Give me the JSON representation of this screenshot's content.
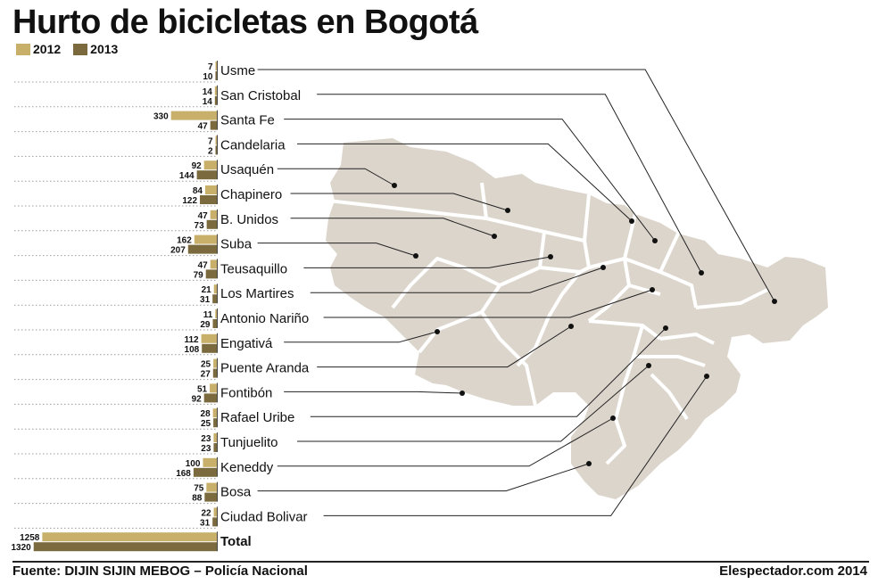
{
  "chart_data": {
    "type": "bar",
    "orientation": "horizontal",
    "title": "Hurto de bicicletas en Bogotá",
    "categories": [
      "Usme",
      "San Cristobal",
      "Santa Fe",
      "Candelaria",
      "Usaquén",
      "Chapinero",
      "B. Unidos",
      "Suba",
      "Teusaquillo",
      "Los Martires",
      "Antonio Nariño",
      "Engativá",
      "Puente Aranda",
      "Fontibón",
      "Rafael Uribe",
      "Tunjuelito",
      "Keneddy",
      "Bosa",
      "Ciudad Bolivar",
      "Total"
    ],
    "series": [
      {
        "name": "2012",
        "color": "#c8b06b",
        "values": [
          7,
          14,
          330,
          7,
          92,
          84,
          47,
          162,
          47,
          21,
          11,
          112,
          25,
          51,
          28,
          23,
          100,
          75,
          22,
          1258
        ]
      },
      {
        "name": "2013",
        "color": "#7a6a3d",
        "values": [
          10,
          14,
          47,
          2,
          144,
          122,
          73,
          207,
          79,
          31,
          29,
          108,
          27,
          92,
          25,
          23,
          168,
          88,
          31,
          1320
        ]
      }
    ],
    "legend_position": "top-left",
    "gridlines": "dotted row separators"
  },
  "footer": {
    "source": "Fuente: DIJIN SIJIN MEBOG – Policía Nacional",
    "credit": "Elespectador.com 2014"
  }
}
